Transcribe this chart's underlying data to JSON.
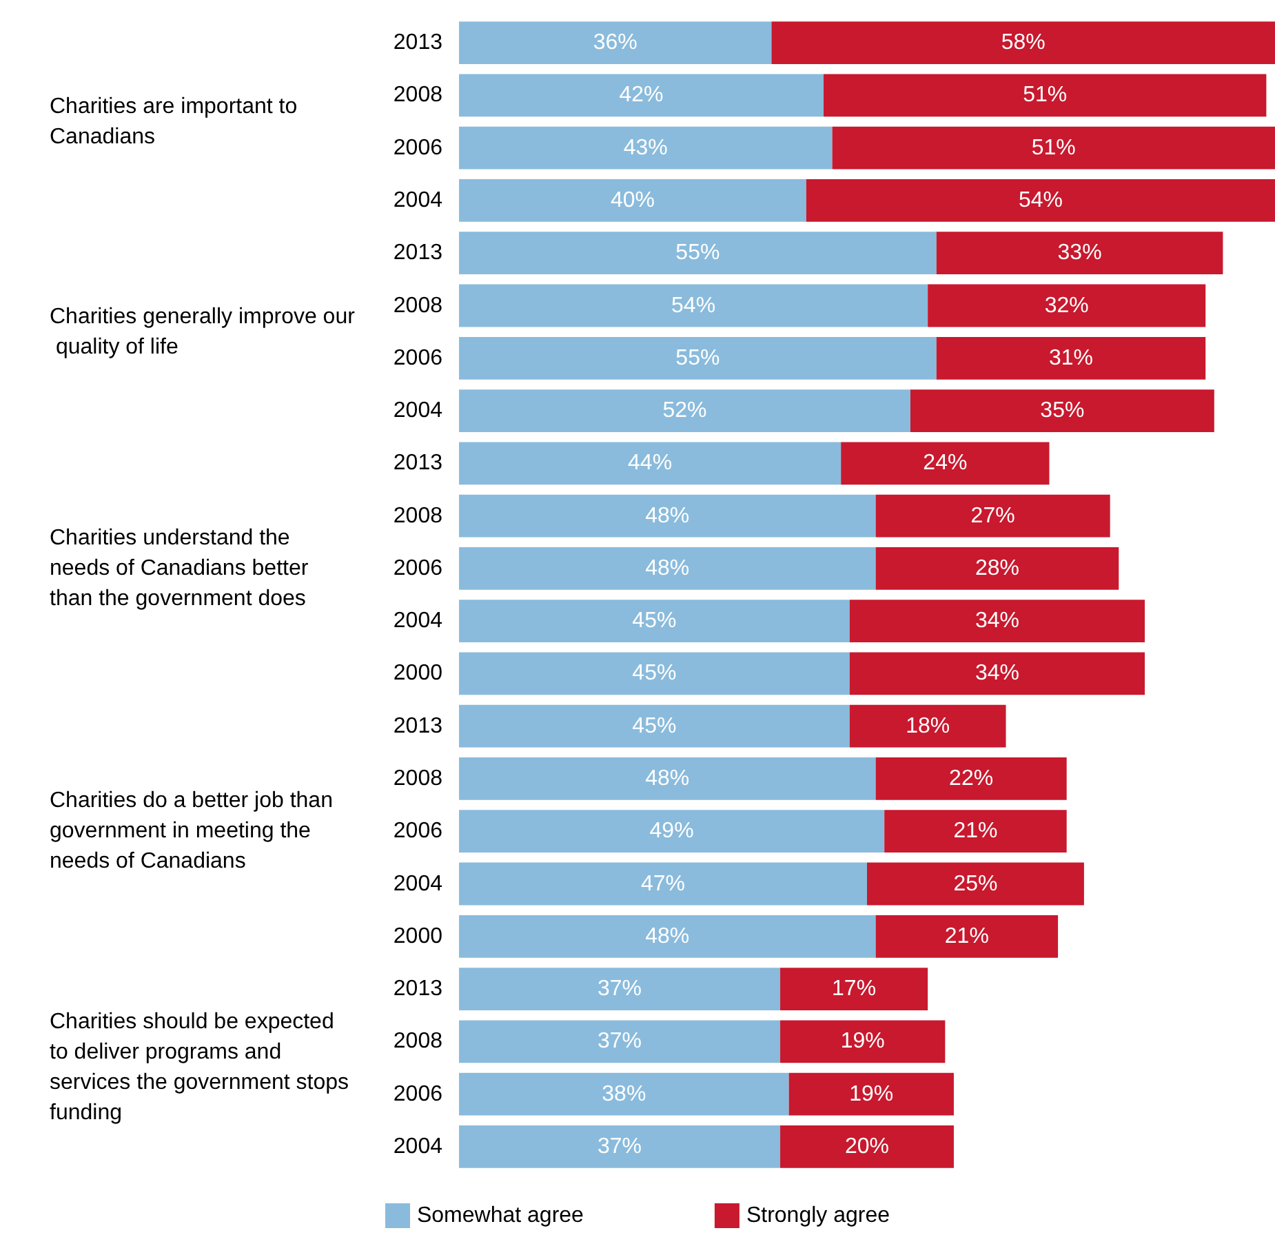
{
  "chart_data": {
    "type": "bar",
    "orientation": "horizontal",
    "stacked": true,
    "legend": "bottom",
    "tick_labels": "y",
    "categories": [
      "2013",
      "2008",
      "2006",
      "2004",
      "2013",
      "2008",
      "2006",
      "2004",
      "2013",
      "2008",
      "2006",
      "2004",
      "2000",
      "2013",
      "2008",
      "2006",
      "2004",
      "2000",
      "2013",
      "2008",
      "2006",
      "2004"
    ],
    "series": [
      {
        "name": "Somewhat agree",
        "color": "#8abbdc",
        "values": [
          36,
          42,
          43,
          40,
          55,
          54,
          55,
          52,
          44,
          48,
          48,
          45,
          45,
          45,
          48,
          49,
          47,
          48,
          37,
          37,
          38,
          37
        ],
        "value_labels": [
          "36%",
          "42%",
          "43%",
          "40%",
          "55%",
          "54%",
          "55%",
          "52%",
          "44%",
          "48%",
          "48%",
          "45%",
          "45%",
          "45%",
          "48%",
          "49%",
          "47%",
          "48%",
          "37%",
          "37%",
          "38%",
          "37%"
        ]
      },
      {
        "name": "Strongly agree",
        "color": "#c8192e",
        "values": [
          58,
          51,
          51,
          54,
          33,
          32,
          31,
          35,
          24,
          27,
          28,
          34,
          34,
          18,
          22,
          21,
          25,
          21,
          17,
          19,
          19,
          20
        ],
        "value_labels": [
          "58%",
          "51%",
          "51%",
          "54%",
          "33%",
          "32%",
          "31%",
          "35%",
          "24%",
          "27%",
          "28%",
          "34%",
          "34%",
          "18%",
          "22%",
          "21%",
          "25%",
          "21%",
          "17%",
          "19%",
          "19%",
          "20%"
        ]
      }
    ],
    "annotations": [
      "Charities are important to Canadians",
      "Charities generally improve our quality of life",
      "Charities understand the needs of Canadians better than the government does",
      "Charities do a better job than government in meeting the needs of Canadians",
      "Charities should be expected to deliver programs and services the government stops funding"
    ]
  }
}
